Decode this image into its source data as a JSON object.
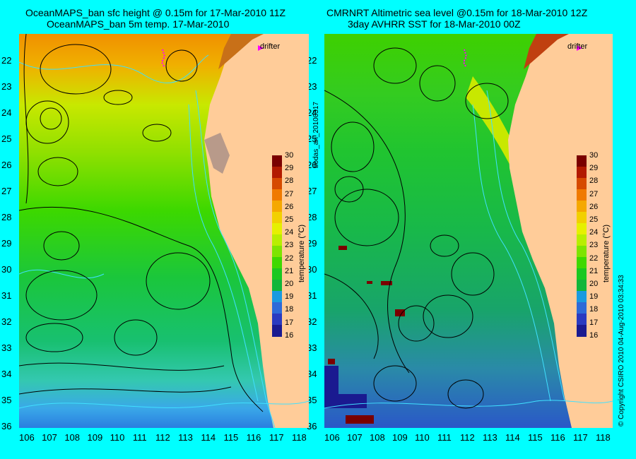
{
  "left": {
    "title_line1": "OceanMAPS_ban sfc height @ 0.15m for 17-Mar-2010 11Z",
    "title_line2": "OceanMAPS_ban 5m temp. 17-Mar-2010",
    "drifter_label": "drifter"
  },
  "right": {
    "title_line1": "CMRNRT Altimetric sea level  @0.15m  for 18-Mar-2010 12Z",
    "title_line2": "3day AVHRR SST for 18-Mar-2010 00Z",
    "drifter_label": "drifter"
  },
  "latitudes": [
    "22",
    "23",
    "24",
    "25",
    "26",
    "27",
    "28",
    "29",
    "30",
    "31",
    "32",
    "33",
    "34",
    "35",
    "36"
  ],
  "longitudes": [
    "106",
    "107",
    "108",
    "109",
    "110",
    "111",
    "112",
    "113",
    "114",
    "115",
    "116",
    "117",
    "118"
  ],
  "colorbar": {
    "ticks": [
      "30",
      "29",
      "28",
      "27",
      "26",
      "25",
      "24",
      "23",
      "22",
      "21",
      "20",
      "19",
      "18",
      "17",
      "16"
    ],
    "label": "temperature (°C)",
    "colors": [
      "#7a0000",
      "#b21a00",
      "#d64a00",
      "#f07a00",
      "#f5a800",
      "#f2d000",
      "#e6f000",
      "#b8ee00",
      "#7ee400",
      "#3fd800",
      "#1ac820",
      "#10b63a",
      "#1a9ae0",
      "#2e6ad8",
      "#2a3ac0",
      "#1a1a90"
    ]
  },
  "side_text": {
    "run_id": "bodas_an_20100317",
    "copyright": "© Copyright CSIRO 2010     04-Aug-2010 03:34:33"
  }
}
